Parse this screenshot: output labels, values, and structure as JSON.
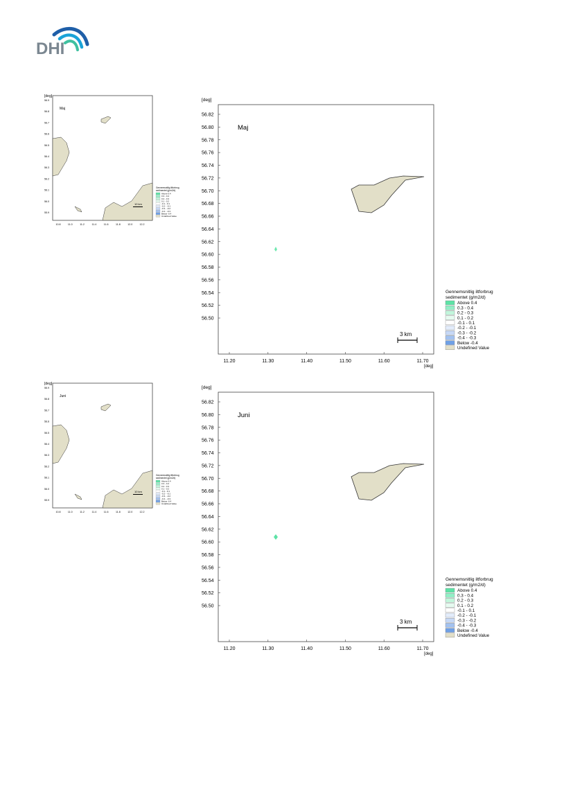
{
  "brand": {
    "logo_text": "DHI",
    "colors": {
      "text": "#7b8791",
      "wave_dark": "#1f5fa8",
      "wave_mid": "#1aa3d8",
      "wave_light": "#3fc0a0"
    }
  },
  "colors": {
    "land": "#e2dfc8",
    "land_stroke": "#333333",
    "frame": "#444444",
    "above_04": "#6fe8b0"
  },
  "legend": {
    "title_line1": "Gennemsnitlig iltforbrug",
    "title_line2": "sedimentet (g/m2/d)",
    "items": [
      {
        "label": "Above  0.4",
        "color": "#5de3a6"
      },
      {
        "label": "0.3 -  0.4",
        "color": "#93efc6"
      },
      {
        "label": "0.2 -  0.3",
        "color": "#c2f6dc"
      },
      {
        "label": "0.1 -  0.2",
        "color": "#e6fbf0"
      },
      {
        "label": "-0.1 -  0.1",
        "color": "#ffffff"
      },
      {
        "label": "-0.2 - -0.1",
        "color": "#e3ecfb"
      },
      {
        "label": "-0.3 - -0.2",
        "color": "#c6d8f6"
      },
      {
        "label": "-0.4 - -0.3",
        "color": "#a3c2f0"
      },
      {
        "label": "Below -0.4",
        "color": "#6fa0e6"
      },
      {
        "label": "Undefined Value",
        "color": "#e2dfc8"
      }
    ]
  },
  "maps": [
    {
      "month": "Maj",
      "axis_unit": "[deg]",
      "y_ticks": [
        "56.82",
        "56.80",
        "56.78",
        "56.76",
        "56.74",
        "56.72",
        "56.70",
        "56.68",
        "56.66",
        "56.64",
        "56.62",
        "56.60",
        "56.58",
        "56.56",
        "56.54",
        "56.52",
        "56.50"
      ],
      "x_ticks": [
        "11.20",
        "11.30",
        "11.40",
        "11.50",
        "11.60",
        "11.70"
      ],
      "scale_bar": "3 km",
      "overview_scale_bar": "10 km"
    },
    {
      "month": "Juni",
      "axis_unit": "[deg]",
      "y_ticks": [
        "56.82",
        "56.80",
        "56.78",
        "56.76",
        "56.74",
        "56.72",
        "56.70",
        "56.68",
        "56.66",
        "56.64",
        "56.62",
        "56.60",
        "56.58",
        "56.56",
        "56.54",
        "56.52",
        "56.50"
      ],
      "x_ticks": [
        "11.20",
        "11.30",
        "11.40",
        "11.50",
        "11.60",
        "11.70"
      ],
      "scale_bar": "3 km",
      "overview_scale_bar": "10 km"
    }
  ],
  "overview": {
    "y_ticks": [
      "56.9",
      "56.8",
      "56.7",
      "56.6",
      "56.5",
      "56.4",
      "56.3",
      "56.2",
      "56.1",
      "56.0",
      "55.9"
    ],
    "x_ticks": [
      "10.8",
      "11.0",
      "11.2",
      "11.4",
      "11.6",
      "11.8",
      "12.0",
      "12.2"
    ]
  }
}
